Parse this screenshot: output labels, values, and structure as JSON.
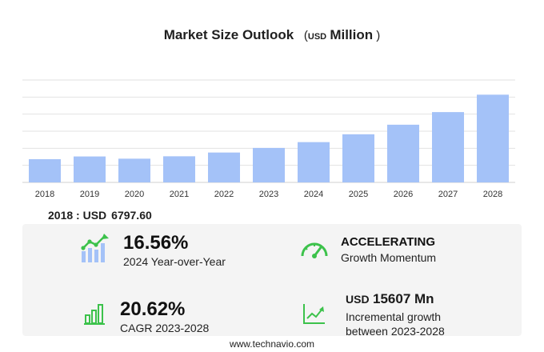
{
  "title": {
    "main": "Market Size Outlook",
    "currency": "USD",
    "unit": "Million"
  },
  "base_stat": {
    "label": "2018 : USD",
    "value": "6797.60"
  },
  "kpis": {
    "yoy": {
      "value": "16.56%",
      "label": "2024 Year-over-Year",
      "icon": "bar-growth-icon"
    },
    "momentum": {
      "value": "ACCELERATING",
      "label": "Growth Momentum",
      "icon": "speedometer-icon"
    },
    "cagr": {
      "value": "20.62%",
      "label": "CAGR 2023-2028",
      "icon": "bar-chart-icon"
    },
    "incremental": {
      "currency": "USD",
      "value": "15607 Mn",
      "label_line1": "Incremental growth",
      "label_line2": "between 2023-2028",
      "icon": "trend-line-icon"
    }
  },
  "footer": "www.technavio.com",
  "colors": {
    "bar": "#a4c2f8",
    "accent_green": "#3cc24b",
    "gridline": "#e2e2e2",
    "panel": "#f4f4f4"
  },
  "chart_data": {
    "type": "bar",
    "categories": [
      "2018",
      "2019",
      "2020",
      "2021",
      "2022",
      "2023",
      "2024",
      "2025",
      "2026",
      "2027",
      "2028"
    ],
    "values": [
      6797.6,
      7600,
      6950,
      7650,
      8750,
      10100,
      11800,
      14100,
      16900,
      20600,
      25700
    ],
    "ylim": [
      0,
      30000
    ],
    "grid": true,
    "legend": "none"
  }
}
